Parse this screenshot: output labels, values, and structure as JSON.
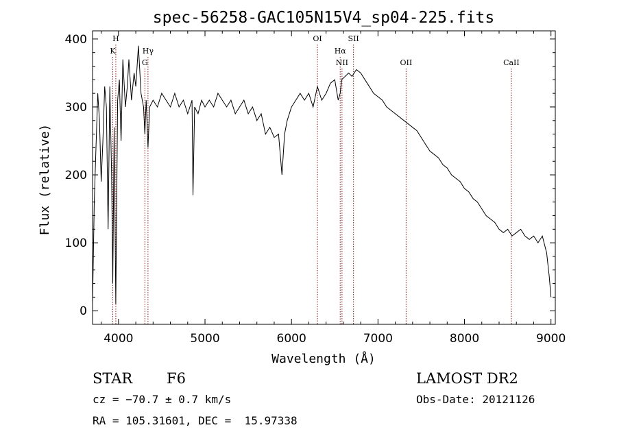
{
  "chart_data": {
    "type": "line",
    "title": "spec-56258-GAC105N15V4_sp04-225.fits",
    "xlabel": "Wavelength (Å)",
    "ylabel": "Flux (relative)",
    "xlim": [
      3700,
      9050
    ],
    "ylim": [
      -20,
      412
    ],
    "xticks": [
      4000,
      5000,
      6000,
      7000,
      8000,
      9000
    ],
    "yticks": [
      0,
      100,
      200,
      300,
      400
    ],
    "grid": false,
    "line_color": "#000000",
    "marker_color": "#8b1a1a",
    "lines": [
      {
        "label": "K",
        "wavelength": 3934,
        "row": 2
      },
      {
        "label": "H",
        "wavelength": 3969,
        "row": 1
      },
      {
        "label": "Hγ",
        "wavelength": 4341,
        "row": 2
      },
      {
        "label": "G",
        "wavelength": 4305,
        "row": 3
      },
      {
        "label": "OI",
        "wavelength": 6300,
        "row": 1
      },
      {
        "label": "Hα",
        "wavelength": 6563,
        "row": 2
      },
      {
        "label": "NII",
        "wavelength": 6584,
        "row": 3
      },
      {
        "label": "SII",
        "wavelength": 6717,
        "row": 1
      },
      {
        "label": "OII",
        "wavelength": 7325,
        "row": 3
      },
      {
        "label": "CaII",
        "wavelength": 8542,
        "row": 3
      }
    ],
    "spectrum": {
      "x": [
        3700,
        3720,
        3740,
        3760,
        3780,
        3800,
        3820,
        3840,
        3860,
        3880,
        3900,
        3920,
        3934,
        3950,
        3969,
        3990,
        4010,
        4030,
        4050,
        4080,
        4102,
        4120,
        4150,
        4180,
        4200,
        4230,
        4260,
        4290,
        4305,
        4320,
        4341,
        4360,
        4400,
        4450,
        4500,
        4550,
        4600,
        4650,
        4700,
        4750,
        4800,
        4850,
        4861,
        4880,
        4920,
        4960,
        5000,
        5050,
        5100,
        5150,
        5200,
        5250,
        5300,
        5350,
        5400,
        5450,
        5500,
        5550,
        5600,
        5650,
        5700,
        5750,
        5800,
        5850,
        5890,
        5920,
        5950,
        6000,
        6050,
        6100,
        6150,
        6200,
        6250,
        6300,
        6350,
        6400,
        6450,
        6500,
        6540,
        6563,
        6580,
        6620,
        6660,
        6700,
        6750,
        6800,
        6850,
        6900,
        6950,
        7000,
        7050,
        7100,
        7150,
        7200,
        7250,
        7300,
        7350,
        7400,
        7450,
        7500,
        7550,
        7600,
        7650,
        7700,
        7750,
        7800,
        7850,
        7900,
        7950,
        8000,
        8050,
        8100,
        8150,
        8200,
        8250,
        8300,
        8350,
        8400,
        8450,
        8500,
        8550,
        8600,
        8650,
        8700,
        8750,
        8800,
        8850,
        8900,
        8950,
        8980,
        9000
      ],
      "y": [
        10,
        160,
        240,
        320,
        280,
        190,
        250,
        330,
        300,
        120,
        330,
        200,
        40,
        270,
        10,
        310,
        340,
        250,
        370,
        300,
        330,
        370,
        310,
        350,
        330,
        390,
        320,
        300,
        260,
        310,
        240,
        300,
        310,
        300,
        320,
        310,
        300,
        320,
        300,
        310,
        290,
        310,
        170,
        300,
        290,
        310,
        300,
        310,
        300,
        320,
        310,
        300,
        310,
        290,
        300,
        310,
        290,
        300,
        280,
        290,
        260,
        270,
        255,
        260,
        200,
        260,
        280,
        300,
        310,
        320,
        310,
        320,
        300,
        330,
        310,
        320,
        335,
        340,
        310,
        320,
        340,
        345,
        350,
        345,
        355,
        350,
        340,
        330,
        320,
        315,
        310,
        300,
        295,
        290,
        285,
        280,
        275,
        270,
        265,
        255,
        245,
        235,
        230,
        225,
        215,
        210,
        200,
        195,
        190,
        180,
        175,
        165,
        160,
        150,
        140,
        135,
        130,
        120,
        115,
        120,
        110,
        115,
        120,
        110,
        105,
        110,
        100,
        110,
        85,
        50,
        20
      ]
    }
  },
  "info": {
    "object_type": "STAR",
    "subclass": "F6",
    "survey": "LAMOST DR2",
    "cz": "cz = −70.7 ± 0.7 km/s",
    "obs_date": "Obs-Date: 20121126",
    "coords": "RA = 105.31601, DEC =  15.97338"
  }
}
